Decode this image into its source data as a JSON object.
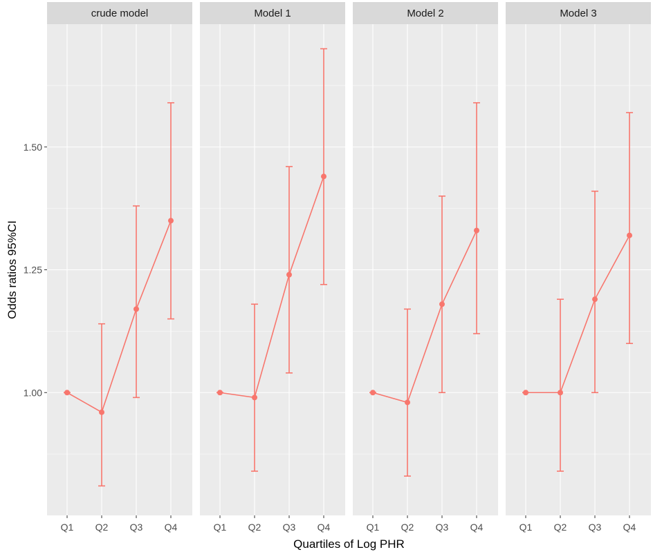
{
  "chart_data": {
    "type": "line",
    "xlabel": "Quartiles of Log PHR",
    "ylabel": "Odds ratios 95%CI",
    "categories": [
      "Q1",
      "Q2",
      "Q3",
      "Q4"
    ],
    "ylim": [
      0.75,
      1.75
    ],
    "y_ticks": [
      1.0,
      1.25,
      1.5
    ],
    "y_tick_labels": [
      "1.00",
      "1.25",
      "1.50"
    ],
    "y_minor_ticks": [
      0.875,
      1.125,
      1.375,
      1.625
    ],
    "grid": true,
    "color": "#F8766D",
    "panels": [
      {
        "title": "crude model",
        "series": [
          {
            "x": "Q1",
            "or": 1.0,
            "lower": 1.0,
            "upper": 1.0
          },
          {
            "x": "Q2",
            "or": 0.96,
            "lower": 0.81,
            "upper": 1.14
          },
          {
            "x": "Q3",
            "or": 1.17,
            "lower": 0.99,
            "upper": 1.38
          },
          {
            "x": "Q4",
            "or": 1.35,
            "lower": 1.15,
            "upper": 1.59
          }
        ]
      },
      {
        "title": "Model 1",
        "series": [
          {
            "x": "Q1",
            "or": 1.0,
            "lower": 1.0,
            "upper": 1.0
          },
          {
            "x": "Q2",
            "or": 0.99,
            "lower": 0.84,
            "upper": 1.18
          },
          {
            "x": "Q3",
            "or": 1.24,
            "lower": 1.04,
            "upper": 1.46
          },
          {
            "x": "Q4",
            "or": 1.44,
            "lower": 1.22,
            "upper": 1.7
          }
        ]
      },
      {
        "title": "Model 2",
        "series": [
          {
            "x": "Q1",
            "or": 1.0,
            "lower": 1.0,
            "upper": 1.0
          },
          {
            "x": "Q2",
            "or": 0.98,
            "lower": 0.83,
            "upper": 1.17
          },
          {
            "x": "Q3",
            "or": 1.18,
            "lower": 1.0,
            "upper": 1.4
          },
          {
            "x": "Q4",
            "or": 1.33,
            "lower": 1.12,
            "upper": 1.59
          }
        ]
      },
      {
        "title": "Model 3",
        "series": [
          {
            "x": "Q1",
            "or": 1.0,
            "lower": 1.0,
            "upper": 1.0
          },
          {
            "x": "Q2",
            "or": 1.0,
            "lower": 0.84,
            "upper": 1.19
          },
          {
            "x": "Q3",
            "or": 1.19,
            "lower": 1.0,
            "upper": 1.41
          },
          {
            "x": "Q4",
            "or": 1.32,
            "lower": 1.1,
            "upper": 1.57
          }
        ]
      }
    ]
  }
}
